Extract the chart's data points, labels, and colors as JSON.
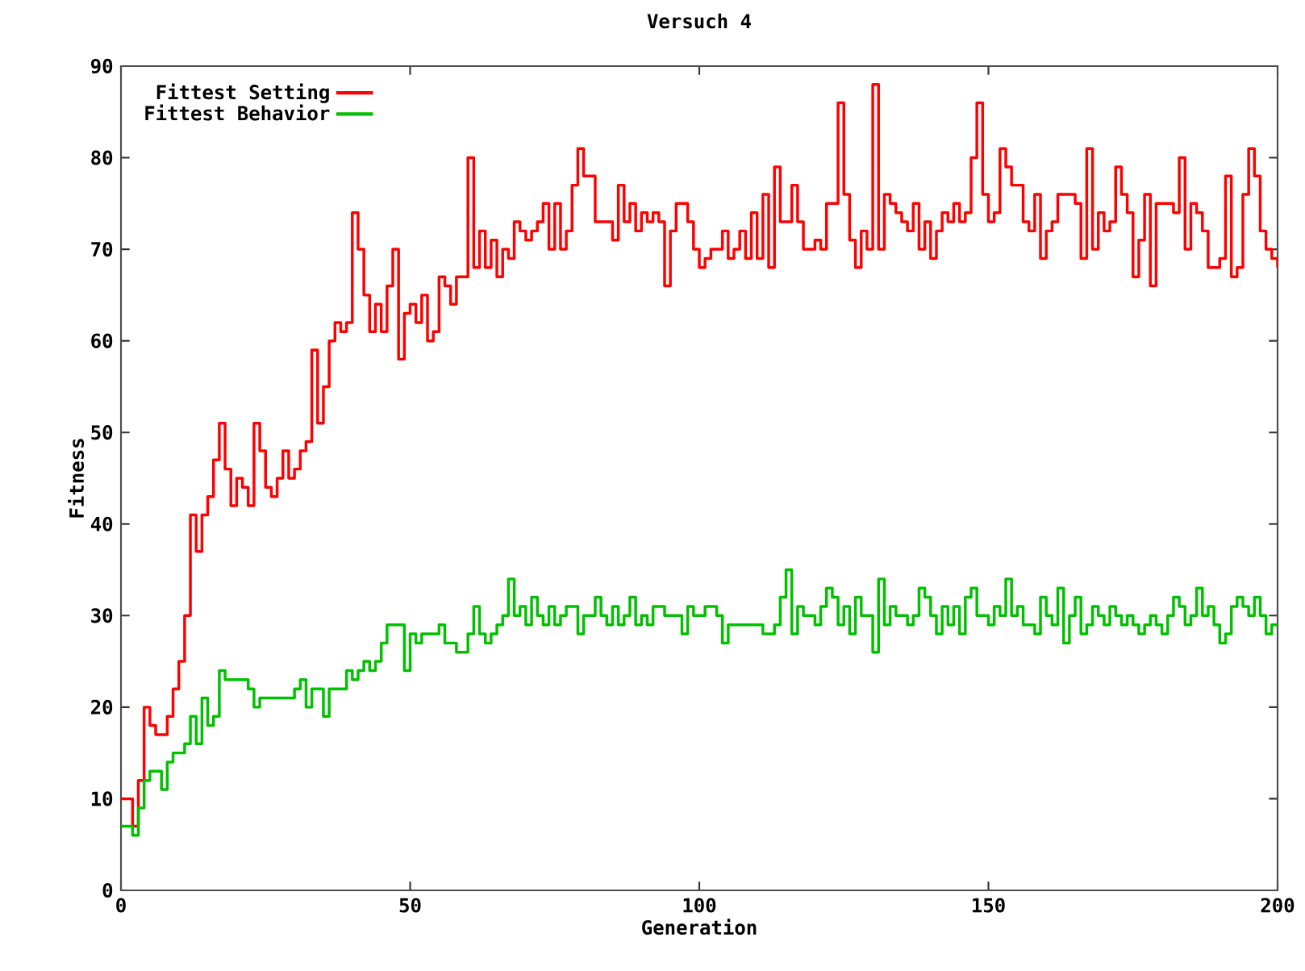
{
  "chart_data": {
    "type": "step",
    "title": "Versuch 4",
    "xlabel": "Generation",
    "ylabel": "Fitness",
    "xlim": [
      0,
      200
    ],
    "ylim": [
      0,
      90
    ],
    "xticks": [
      0,
      50,
      100,
      150,
      200
    ],
    "yticks": [
      0,
      10,
      20,
      30,
      40,
      50,
      60,
      70,
      80,
      90
    ],
    "grid": false,
    "legend": "top left",
    "x": [
      0,
      1,
      2,
      3,
      4,
      5,
      6,
      7,
      8,
      9,
      10,
      11,
      12,
      13,
      14,
      15,
      16,
      17,
      18,
      19,
      20,
      21,
      22,
      23,
      24,
      25,
      26,
      27,
      28,
      29,
      30,
      31,
      32,
      33,
      34,
      35,
      36,
      37,
      38,
      39,
      40,
      41,
      42,
      43,
      44,
      45,
      46,
      47,
      48,
      49,
      50,
      51,
      52,
      53,
      54,
      55,
      56,
      57,
      58,
      59,
      60,
      61,
      62,
      63,
      64,
      65,
      66,
      67,
      68,
      69,
      70,
      71,
      72,
      73,
      74,
      75,
      76,
      77,
      78,
      79,
      80,
      81,
      82,
      83,
      84,
      85,
      86,
      87,
      88,
      89,
      90,
      91,
      92,
      93,
      94,
      95,
      96,
      97,
      98,
      99,
      100,
      101,
      102,
      103,
      104,
      105,
      106,
      107,
      108,
      109,
      110,
      111,
      112,
      113,
      114,
      115,
      116,
      117,
      118,
      119,
      120,
      121,
      122,
      123,
      124,
      125,
      126,
      127,
      128,
      129,
      130,
      131,
      132,
      133,
      134,
      135,
      136,
      137,
      138,
      139,
      140,
      141,
      142,
      143,
      144,
      145,
      146,
      147,
      148,
      149,
      150,
      151,
      152,
      153,
      154,
      155,
      156,
      157,
      158,
      159,
      160,
      161,
      162,
      163,
      164,
      165,
      166,
      167,
      168,
      169,
      170,
      171,
      172,
      173,
      174,
      175,
      176,
      177,
      178,
      179,
      180,
      181,
      182,
      183,
      184,
      185,
      186,
      187,
      188,
      189,
      190,
      191,
      192,
      193,
      194,
      195,
      196,
      197,
      198,
      199,
      200
    ],
    "series": [
      {
        "name": "Fittest Setting",
        "color": "#ff0000",
        "values": [
          10,
          10,
          7,
          12,
          20,
          18,
          17,
          17,
          19,
          22,
          25,
          30,
          41,
          37,
          41,
          43,
          47,
          51,
          46,
          42,
          45,
          44,
          42,
          51,
          48,
          44,
          43,
          45,
          48,
          45,
          46,
          48,
          49,
          59,
          51,
          55,
          60,
          62,
          61,
          62,
          74,
          70,
          65,
          61,
          64,
          61,
          66,
          70,
          58,
          63,
          64,
          62,
          65,
          60,
          61,
          67,
          66,
          64,
          67,
          67,
          80,
          68,
          72,
          68,
          71,
          67,
          70,
          69,
          73,
          72,
          71,
          72,
          73,
          75,
          70,
          75,
          70,
          72,
          77,
          81,
          78,
          78,
          73,
          73,
          73,
          71,
          77,
          73,
          75,
          72,
          74,
          73,
          74,
          73,
          66,
          72,
          75,
          75,
          73,
          70,
          68,
          69,
          70,
          70,
          72,
          69,
          70,
          72,
          69,
          74,
          69,
          76,
          68,
          79,
          73,
          73,
          77,
          73,
          70,
          70,
          71,
          70,
          75,
          75,
          86,
          76,
          71,
          68,
          72,
          70,
          88,
          70,
          76,
          75,
          74,
          73,
          72,
          75,
          70,
          73,
          69,
          72,
          74,
          73,
          75,
          73,
          74,
          80,
          86,
          76,
          73,
          74,
          81,
          79,
          77,
          77,
          73,
          72,
          76,
          69,
          72,
          73,
          76,
          76,
          76,
          75,
          69,
          81,
          70,
          74,
          72,
          73,
          79,
          76,
          74,
          67,
          71,
          76,
          66,
          75,
          75,
          75,
          74,
          80,
          70,
          75,
          74,
          72,
          68,
          68,
          69,
          78,
          67,
          68,
          76,
          81,
          78,
          72,
          70,
          69,
          68
        ]
      },
      {
        "name": "Fittest Behavior",
        "color": "#00c000",
        "values": [
          7,
          7,
          6,
          9,
          12,
          13,
          13,
          11,
          14,
          15,
          15,
          16,
          19,
          16,
          21,
          18,
          19,
          24,
          23,
          23,
          23,
          23,
          22,
          20,
          21,
          21,
          21,
          21,
          21,
          21,
          22,
          23,
          20,
          22,
          22,
          19,
          22,
          22,
          22,
          24,
          23,
          24,
          25,
          24,
          25,
          27,
          29,
          29,
          29,
          24,
          28,
          27,
          28,
          28,
          28,
          29,
          27,
          27,
          26,
          26,
          28,
          31,
          28,
          27,
          28,
          29,
          30,
          34,
          30,
          31,
          29,
          32,
          30,
          29,
          31,
          29,
          30,
          31,
          31,
          28,
          30,
          30,
          32,
          30,
          29,
          31,
          29,
          30,
          32,
          29,
          30,
          29,
          31,
          31,
          30,
          30,
          30,
          28,
          31,
          30,
          30,
          31,
          31,
          30,
          27,
          29,
          29,
          29,
          29,
          29,
          29,
          28,
          28,
          29,
          32,
          35,
          28,
          31,
          30,
          30,
          29,
          31,
          33,
          32,
          29,
          31,
          28,
          32,
          30,
          30,
          26,
          34,
          29,
          31,
          30,
          30,
          29,
          30,
          33,
          32,
          30,
          28,
          31,
          29,
          31,
          28,
          32,
          33,
          30,
          30,
          29,
          31,
          30,
          34,
          30,
          31,
          29,
          29,
          28,
          32,
          30,
          29,
          33,
          27,
          30,
          32,
          28,
          29,
          31,
          30,
          29,
          31,
          30,
          29,
          30,
          29,
          28,
          29,
          30,
          29,
          28,
          30,
          32,
          31,
          29,
          30,
          33,
          30,
          31,
          29,
          27,
          28,
          31,
          32,
          31,
          30,
          32,
          30,
          28,
          29,
          29
        ]
      }
    ]
  }
}
